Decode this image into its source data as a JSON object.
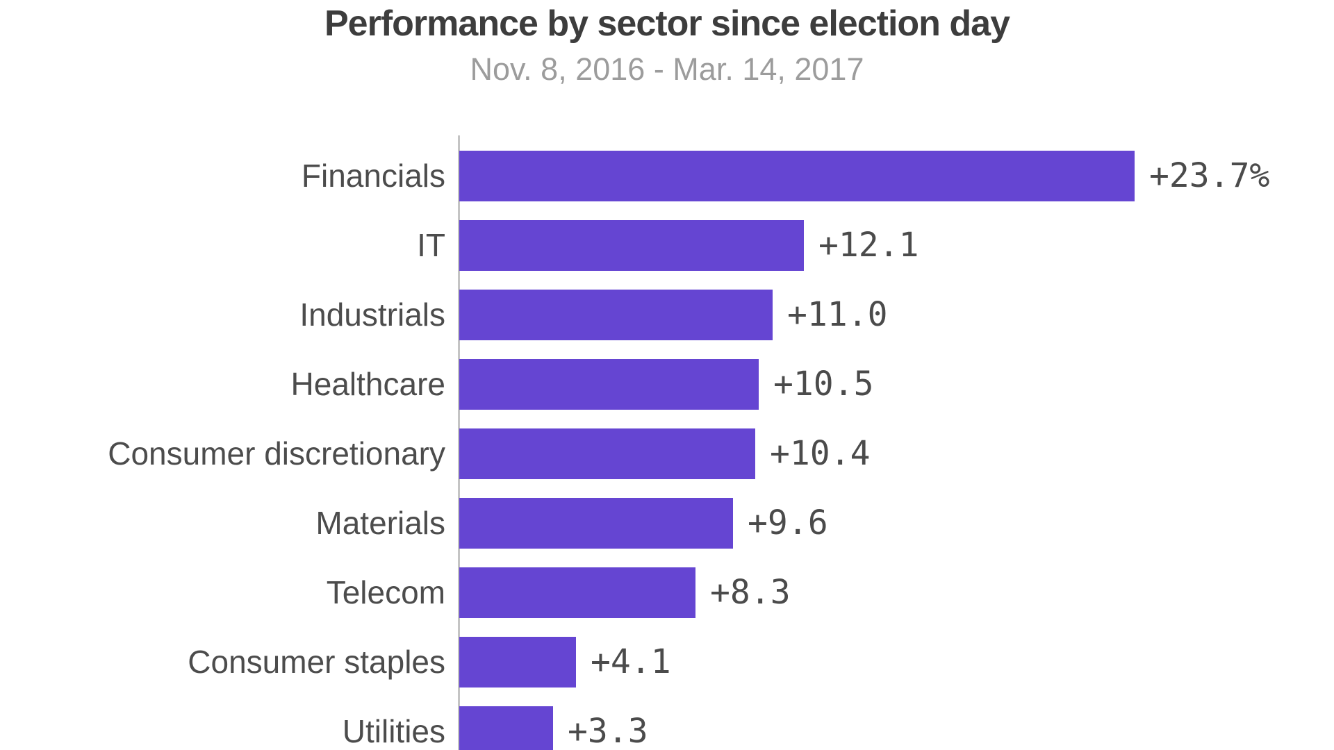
{
  "title": "Performance by sector since election day",
  "subtitle": "Nov. 8, 2016 - Mar. 14, 2017",
  "colors": {
    "bar": "#6545d2",
    "title_text": "#3d3d3d",
    "subtitle_text": "#9c9c9c",
    "category_text": "#4c4c4c",
    "value_text": "#4b4b4b",
    "axis_line": "#c4c4c4",
    "background": "#ffffff"
  },
  "chart_data": {
    "type": "bar",
    "orientation": "horizontal",
    "title": "Performance by sector since election day",
    "subtitle": "Nov. 8, 2016 - Mar. 14, 2017",
    "categories": [
      "Financials",
      "IT",
      "Industrials",
      "Healthcare",
      "Consumer discretionary",
      "Materials",
      "Telecom",
      "Consumer staples",
      "Utilities"
    ],
    "values": [
      23.7,
      12.1,
      11.0,
      10.5,
      10.4,
      9.6,
      8.3,
      4.1,
      3.3
    ],
    "value_labels": [
      "+23.7%",
      "+12.1",
      "+11.0",
      "+10.5",
      "+10.4",
      "+9.6",
      "+8.3",
      "+4.1",
      "+3.3"
    ],
    "unit": "percent",
    "xlabel": "",
    "ylabel": "",
    "xlim": [
      0,
      25
    ],
    "grid": false,
    "legend": false,
    "notes": "last bar (Utilities) is clipped by the bottom edge of the image"
  }
}
